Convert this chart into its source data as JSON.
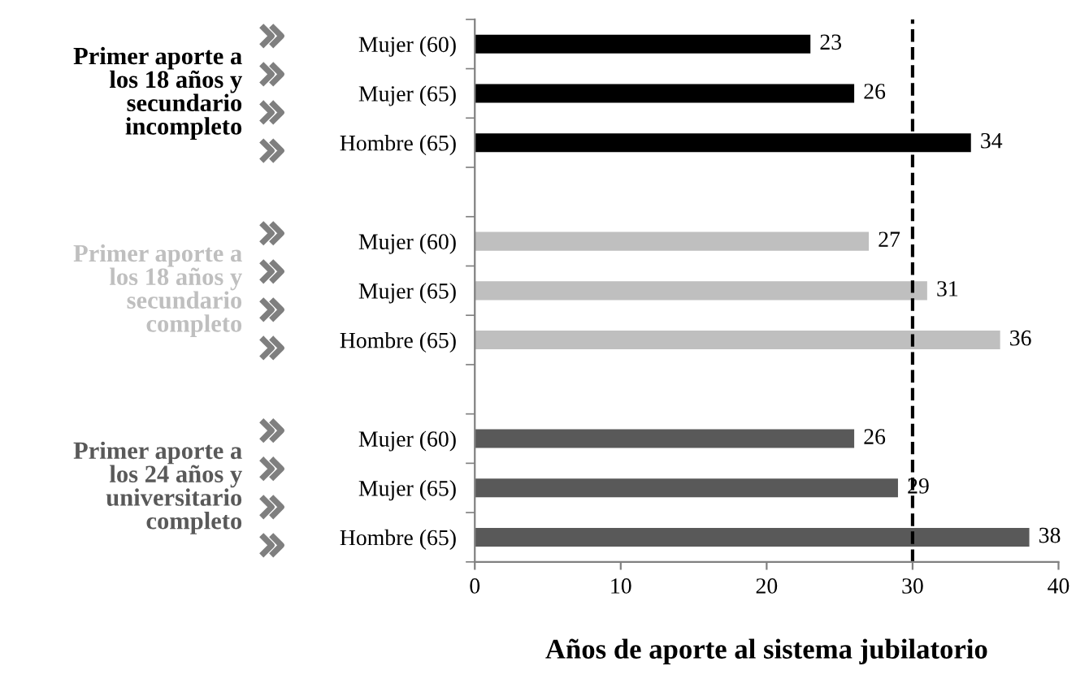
{
  "chart_data": {
    "type": "bar",
    "orientation": "horizontal",
    "categories": [
      "Mujer (60)",
      "Mujer (65)",
      "Hombre (65)",
      null,
      "Mujer (60)",
      "Mujer (65)",
      "Hombre (65)",
      null,
      "Mujer (60)",
      "Mujer (65)",
      "Hombre (65)"
    ],
    "values": [
      23,
      26,
      34,
      null,
      27,
      31,
      36,
      null,
      26,
      29,
      38
    ],
    "colors": [
      "#000000",
      "#000000",
      "#000000",
      null,
      "#bfbfbf",
      "#bfbfbf",
      "#bfbfbf",
      null,
      "#595959",
      "#595959",
      "#595959"
    ],
    "data_labels": true,
    "xlabel": "Años de aporte al sistema jubilatorio",
    "xlim": [
      0,
      40
    ],
    "xticks": [
      0,
      10,
      20,
      30,
      40
    ],
    "ref_lines": [
      {
        "axis": "x",
        "value": 30,
        "color": "#000000",
        "line_style": "dashed"
      }
    ],
    "annotations": [
      "Primer aporte a\nlos 18 años y\nsecundario\nincompleto",
      "Primer aporte a\nlos 18 años y\nsecundario\ncompleto",
      "Primer aporte a\nlos 24 años y\nuniversitario\ncompleto"
    ],
    "grid": false
  }
}
